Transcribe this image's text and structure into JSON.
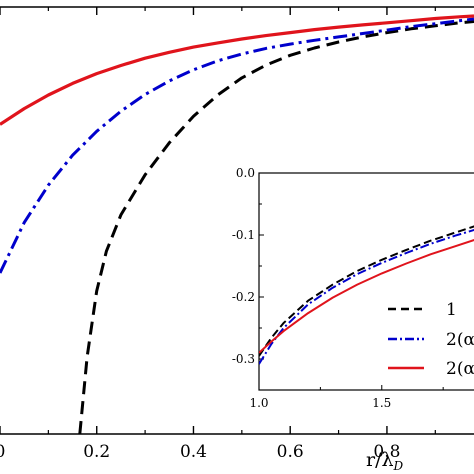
{
  "chart_data": [
    {
      "type": "line",
      "xlabel_main": "r/λ",
      "xlabel_sub": "D",
      "xlim": [
        0.0,
        0.98
      ],
      "ylim": [
        -1.0,
        0.0
      ],
      "x_tick_labels": [
        "0",
        "0.2",
        "0.4",
        "0.6",
        "0.8"
      ],
      "x_ticks": [
        0.0,
        0.2,
        0.4,
        0.6,
        0.8
      ],
      "series": [
        {
          "name": "1",
          "color": "#000000",
          "dash": "dashed",
          "x": [
            0.165,
            0.18,
            0.2,
            0.22,
            0.25,
            0.3,
            0.35,
            0.4,
            0.45,
            0.5,
            0.55,
            0.6,
            0.65,
            0.7,
            0.75,
            0.8,
            0.85,
            0.9,
            0.95,
            0.98
          ],
          "y": [
            -1.0,
            -0.82,
            -0.665,
            -0.572,
            -0.487,
            -0.393,
            -0.318,
            -0.256,
            -0.206,
            -0.166,
            -0.136,
            -0.113,
            -0.096,
            -0.082,
            -0.07,
            -0.06,
            -0.051,
            -0.044,
            -0.037,
            -0.034
          ]
        },
        {
          "name": "2(α",
          "color": "#0000cc",
          "dash": "dashdot",
          "x": [
            0.0,
            0.05,
            0.1,
            0.15,
            0.2,
            0.25,
            0.3,
            0.35,
            0.4,
            0.45,
            0.5,
            0.55,
            0.6,
            0.65,
            0.7,
            0.75,
            0.8,
            0.85,
            0.9,
            0.95,
            0.98
          ],
          "y": [
            -0.623,
            -0.505,
            -0.417,
            -0.347,
            -0.291,
            -0.244,
            -0.205,
            -0.173,
            -0.147,
            -0.126,
            -0.11,
            -0.097,
            -0.087,
            -0.078,
            -0.07,
            -0.062,
            -0.054,
            -0.046,
            -0.039,
            -0.032,
            -0.028
          ]
        },
        {
          "name": "2(α",
          "color": "#e0141c",
          "dash": "solid",
          "x": [
            0.0,
            0.05,
            0.1,
            0.15,
            0.2,
            0.25,
            0.3,
            0.35,
            0.4,
            0.45,
            0.5,
            0.55,
            0.6,
            0.65,
            0.7,
            0.75,
            0.8,
            0.85,
            0.9,
            0.95,
            0.98
          ],
          "y": [
            -0.275,
            -0.238,
            -0.206,
            -0.179,
            -0.156,
            -0.137,
            -0.12,
            -0.106,
            -0.094,
            -0.084,
            -0.075,
            -0.067,
            -0.06,
            -0.053,
            -0.047,
            -0.042,
            -0.037,
            -0.032,
            -0.027,
            -0.023,
            -0.021
          ]
        }
      ]
    },
    {
      "type": "line",
      "inset": true,
      "xlim": [
        1.0,
        1.9
      ],
      "ylim": [
        -0.35,
        0.0
      ],
      "x_ticks": [
        1.0,
        1.5
      ],
      "x_tick_labels": [
        "1.0",
        "1.5"
      ],
      "y_ticks": [
        0.0,
        -0.1,
        -0.2,
        -0.3
      ],
      "y_tick_labels": [
        "0.0",
        "-0.1",
        "-0.2",
        "-0.3"
      ],
      "series": [
        {
          "name": "1",
          "color": "#000000",
          "dash": "dashed",
          "x": [
            1.0,
            1.05,
            1.1,
            1.2,
            1.3,
            1.4,
            1.5,
            1.6,
            1.7,
            1.8,
            1.9
          ],
          "y": [
            -0.295,
            -0.266,
            -0.242,
            -0.206,
            -0.18,
            -0.158,
            -0.14,
            -0.124,
            -0.109,
            -0.096,
            -0.083
          ]
        },
        {
          "name": "2(α",
          "color": "#0000cc",
          "dash": "dashdot",
          "x": [
            1.0,
            1.05,
            1.1,
            1.2,
            1.3,
            1.4,
            1.5,
            1.6,
            1.7,
            1.8,
            1.9
          ],
          "y": [
            -0.308,
            -0.276,
            -0.25,
            -0.212,
            -0.185,
            -0.163,
            -0.145,
            -0.129,
            -0.114,
            -0.101,
            -0.089
          ]
        },
        {
          "name": "2(α",
          "color": "#e0141c",
          "dash": "solid",
          "x": [
            1.0,
            1.05,
            1.1,
            1.2,
            1.3,
            1.4,
            1.5,
            1.6,
            1.7,
            1.8,
            1.9
          ],
          "y": [
            -0.29,
            -0.272,
            -0.255,
            -0.226,
            -0.201,
            -0.18,
            -0.162,
            -0.146,
            -0.131,
            -0.118,
            -0.105
          ]
        }
      ]
    }
  ],
  "legend": {
    "placement": "lower-right of inset",
    "entries": [
      "1",
      "2(α",
      "2(α"
    ]
  }
}
